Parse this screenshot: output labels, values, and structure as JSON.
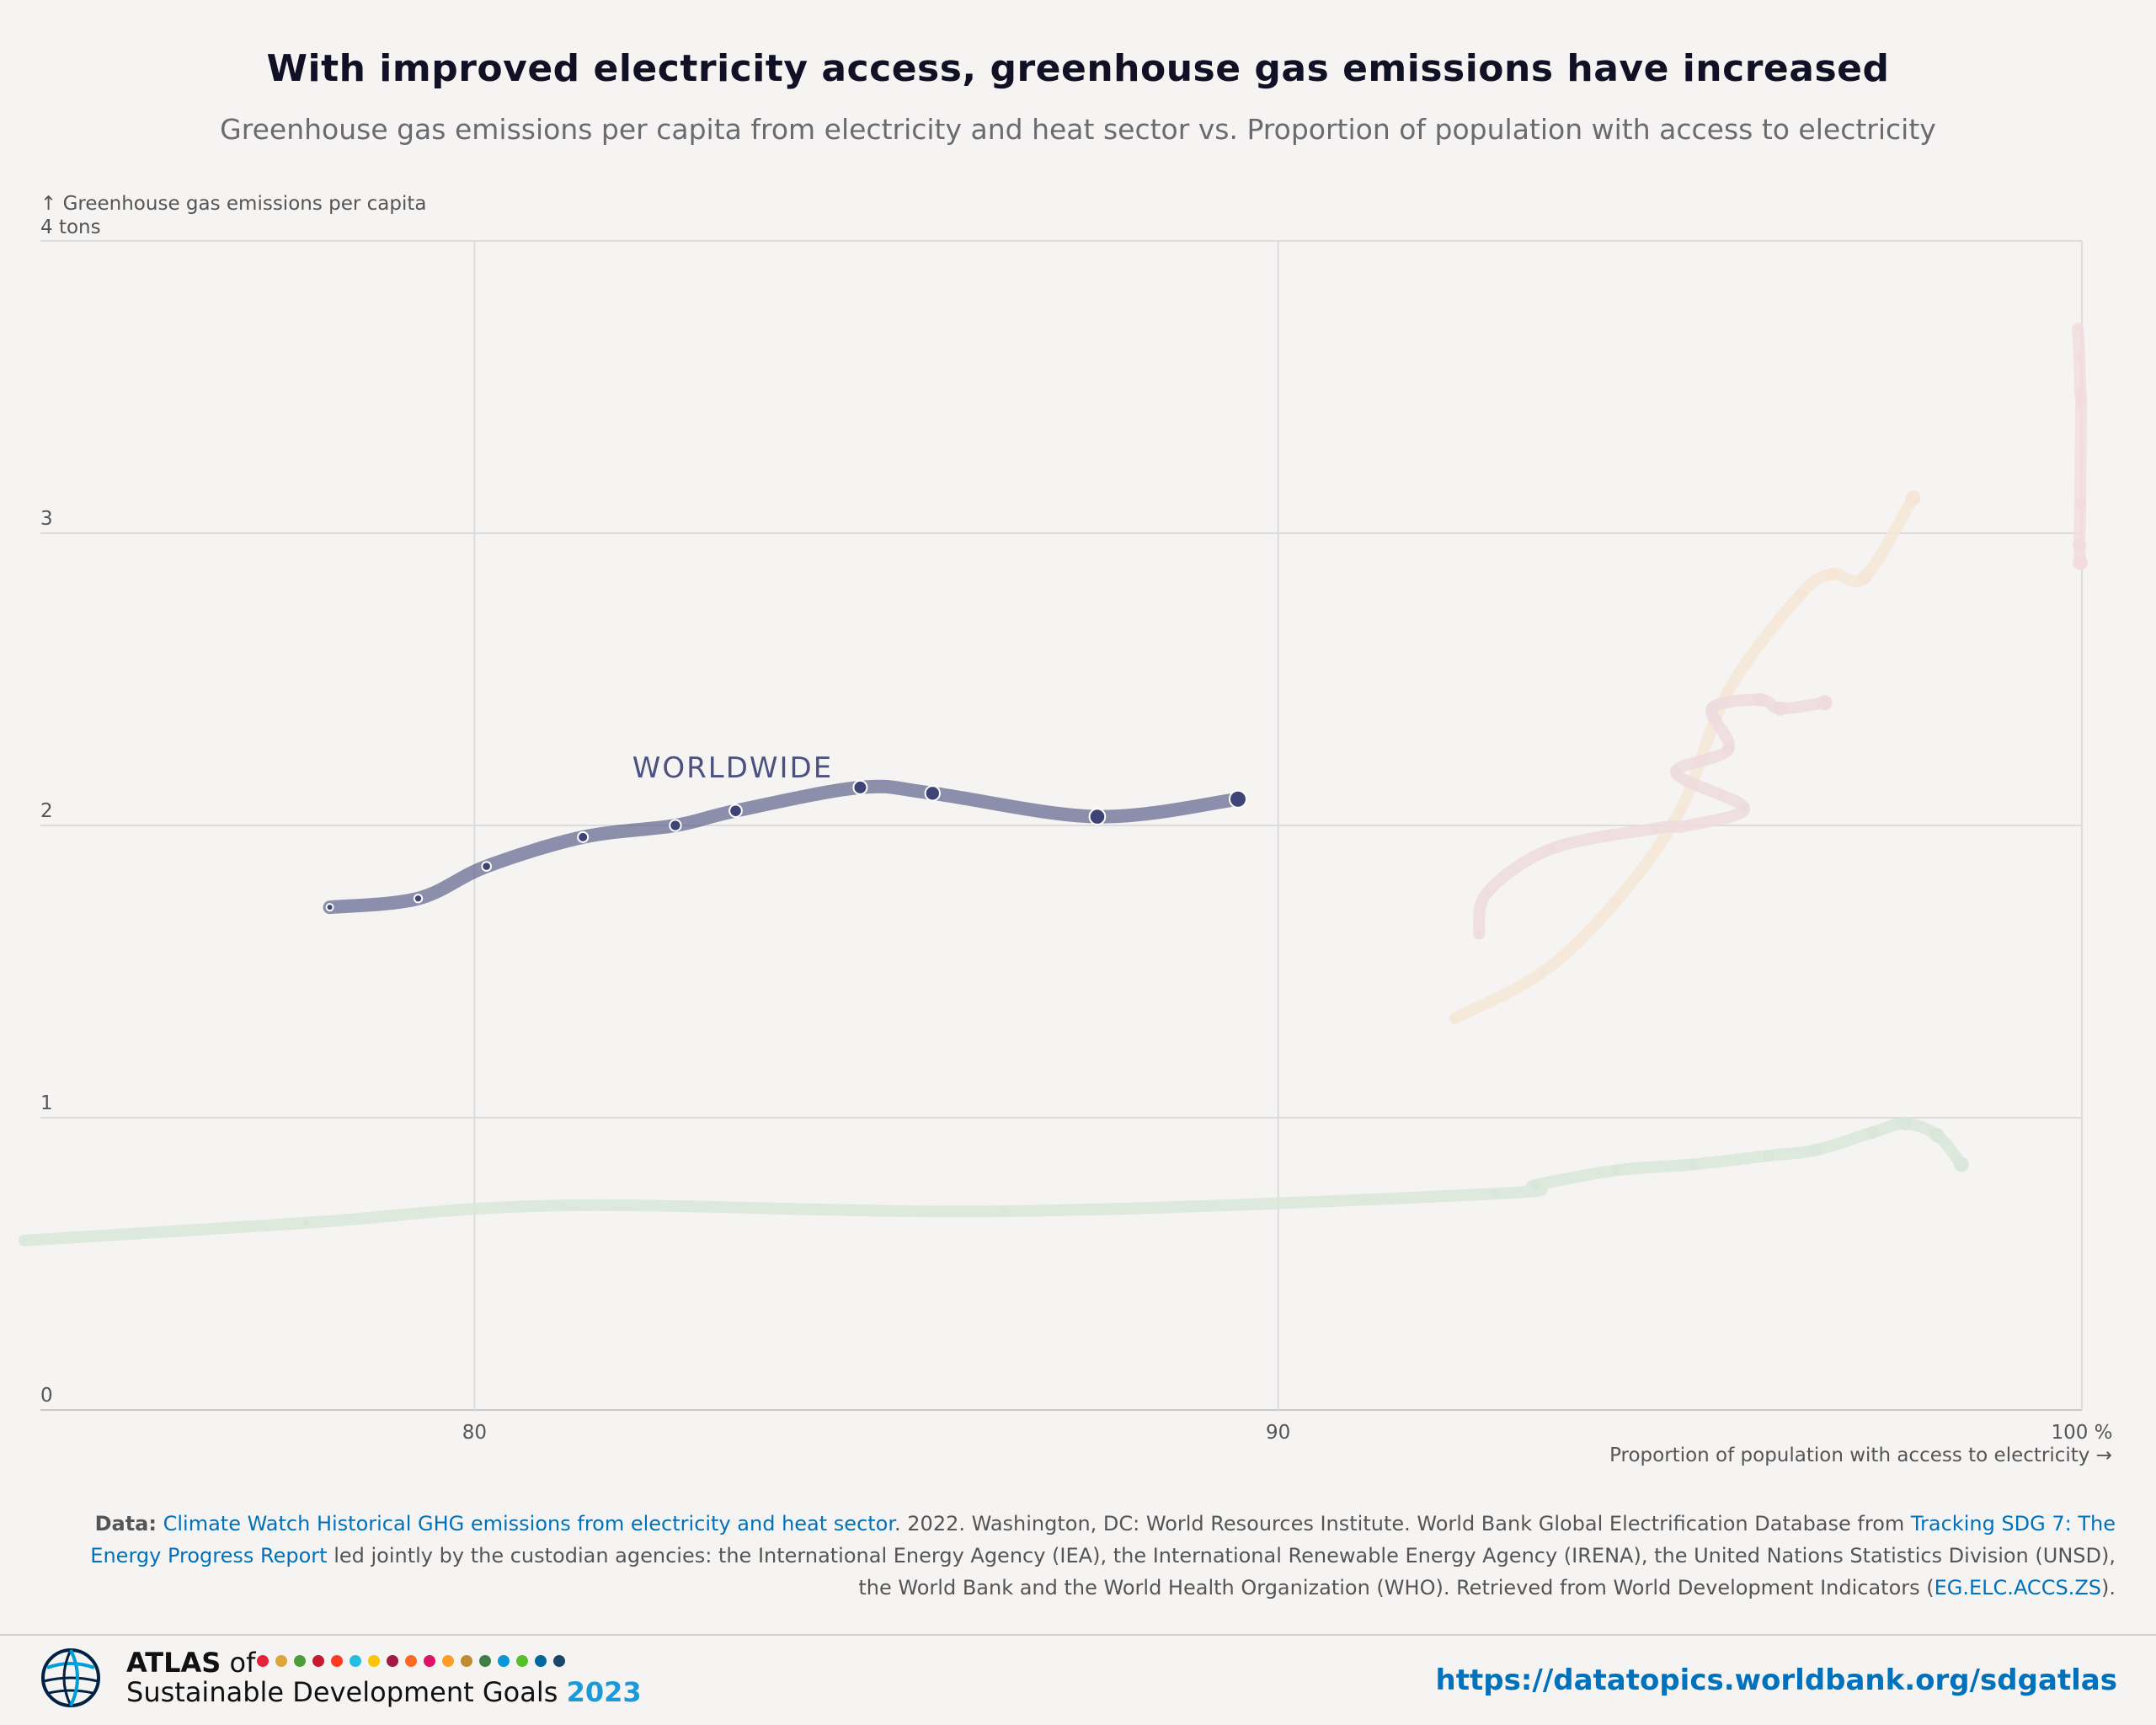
{
  "header": {
    "title": "With improved electricity access, greenhouse gas emissions have increased",
    "subtitle": "Greenhouse gas emissions per capita from electricity and heat sector vs. Proportion of population with access to electricity"
  },
  "chart_data": {
    "type": "line",
    "ylabel": "↑ Greenhouse gas emissions per capita",
    "y_unit_label": "4 tons",
    "xlabel": "Proportion of population with access to electricity →",
    "xlim": [
      74.6,
      100
    ],
    "ylim": [
      0,
      4
    ],
    "x_ticks": [
      {
        "value": 80,
        "label": "80"
      },
      {
        "value": 90,
        "label": "90"
      },
      {
        "value": 100,
        "label": "100 %"
      }
    ],
    "y_ticks": [
      {
        "value": 0,
        "label": "0"
      },
      {
        "value": 1,
        "label": "1"
      },
      {
        "value": 2,
        "label": "2"
      },
      {
        "value": 3,
        "label": "3"
      },
      {
        "value": 4,
        "label": ""
      }
    ],
    "grid": true,
    "highlight_label": "WORLDWIDE",
    "series": [
      {
        "name": "WORLDWIDE",
        "color": "#4b5180",
        "highlight": true,
        "points": [
          [
            78.2,
            1.72
          ],
          [
            79.3,
            1.75
          ],
          [
            80.15,
            1.86
          ],
          [
            81.35,
            1.96
          ],
          [
            82.5,
            2.0
          ],
          [
            83.25,
            2.05
          ],
          [
            84.8,
            2.13
          ],
          [
            85.7,
            2.11
          ],
          [
            87.75,
            2.03
          ],
          [
            89.5,
            2.09
          ]
        ]
      },
      {
        "name": "",
        "color": "#d9e6d9",
        "highlight": false,
        "points": [
          [
            74.4,
            0.58
          ],
          [
            77.9,
            0.64
          ],
          [
            81.1,
            0.7
          ],
          [
            86.6,
            0.68
          ],
          [
            92.7,
            0.74
          ],
          [
            93.2,
            0.77
          ],
          [
            94.2,
            0.82
          ],
          [
            95.15,
            0.84
          ],
          [
            96.1,
            0.87
          ],
          [
            96.7,
            0.89
          ],
          [
            97.4,
            0.95
          ],
          [
            97.8,
            0.98
          ],
          [
            98.2,
            0.94
          ],
          [
            98.5,
            0.84
          ]
        ]
      },
      {
        "name": "",
        "color": "#f5e6d6",
        "highlight": false,
        "points": [
          [
            92.2,
            1.34
          ],
          [
            93.3,
            1.5
          ],
          [
            94.2,
            1.74
          ],
          [
            95.0,
            2.05
          ],
          [
            95.6,
            2.46
          ],
          [
            96.5,
            2.79
          ],
          [
            96.9,
            2.86
          ],
          [
            97.3,
            2.85
          ],
          [
            97.9,
            3.12
          ]
        ]
      },
      {
        "name": "",
        "color": "#eddadd",
        "highlight": false,
        "points": [
          [
            92.5,
            1.63
          ],
          [
            92.6,
            1.77
          ],
          [
            93.4,
            1.92
          ],
          [
            94.7,
            1.99
          ],
          [
            95.1,
            2.0
          ],
          [
            95.8,
            2.06
          ],
          [
            94.95,
            2.18
          ],
          [
            95.6,
            2.26
          ],
          [
            95.4,
            2.4
          ],
          [
            96.0,
            2.43
          ],
          [
            96.25,
            2.4
          ],
          [
            96.8,
            2.42
          ]
        ]
      },
      {
        "name": "",
        "color": "#f2dcdc",
        "highlight": false,
        "points": [
          [
            99.95,
            3.7
          ],
          [
            99.97,
            3.6
          ],
          [
            99.98,
            3.48
          ],
          [
            99.99,
            3.45
          ],
          [
            99.98,
            3.1
          ],
          [
            99.97,
            2.96
          ],
          [
            99.98,
            2.9
          ]
        ]
      }
    ]
  },
  "source": {
    "data_label": "Data:",
    "link1": "Climate Watch Historical GHG emissions from electricity and heat sector",
    "text1": ". 2022. Washington, DC: World Resources Institute. World Bank Global Electrification Database from ",
    "link2": "Tracking SDG 7: The Energy Progress Report",
    "text2": " led jointly by the custodian agencies: the International Energy Agency (IEA), the International Renewable Energy Agency (IRENA), the United Nations Statistics Division (UNSD), the World Bank and the World Health Organization (WHO). Retrieved from World Development Indicators (",
    "link3": "EG.ELC.ACCS.ZS",
    "text3": ")."
  },
  "footer": {
    "atlas_bold": "ATLAS",
    "atlas_of": " of",
    "atlas_sub": "Sustainable Development Goals ",
    "atlas_year": "2023",
    "url": "https://datatopics.worldbank.org/sdgatlas",
    "logo_icon": "globe-icon",
    "sdg_dot_colors": [
      "#e5243b",
      "#dda63a",
      "#4c9f38",
      "#c5192d",
      "#ff3a21",
      "#26bde2",
      "#fcc30b",
      "#a21942",
      "#fd6925",
      "#dd1367",
      "#fd9d24",
      "#bf8b2e",
      "#3f7e44",
      "#0a97d9",
      "#56c02b",
      "#00689d",
      "#19486a"
    ]
  }
}
